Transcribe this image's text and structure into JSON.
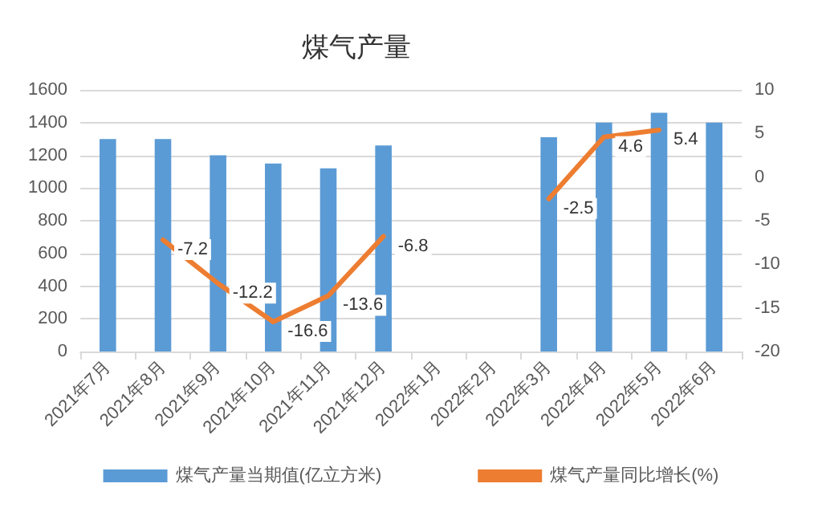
{
  "chart_data": {
    "type": "bar",
    "title": "煤气产量",
    "categories": [
      "2021年7月",
      "2021年8月",
      "2021年9月",
      "2021年10月",
      "2021年11月",
      "2021年12月",
      "2022年1月",
      "2022年2月",
      "2022年3月",
      "2022年4月",
      "2022年5月",
      "2022年6月"
    ],
    "series": [
      {
        "name": "煤气产量当期值(亿立方米)",
        "color": "#5b9bd5",
        "values": [
          1300,
          1300,
          1200,
          1150,
          1120,
          1260,
          null,
          null,
          1310,
          1400,
          1460,
          1400
        ]
      },
      {
        "name": "煤气产量同比增长(%)",
        "type": "line",
        "axis": "y2",
        "color": "#ed7d31",
        "values": [
          null,
          -7.2,
          -12.2,
          -16.6,
          -13.6,
          -6.8,
          null,
          null,
          -2.5,
          4.6,
          5.4,
          null
        ],
        "value_labels": [
          null,
          "-7.2",
          "-12.2",
          "-16.6",
          "-13.6",
          "-6.8",
          null,
          null,
          "-2.5",
          "4.6",
          "5.4",
          null
        ]
      }
    ],
    "ylim": [
      0,
      1600
    ],
    "yticks": [
      0,
      200,
      400,
      600,
      800,
      1000,
      1200,
      1400,
      1600
    ],
    "y2lim": [
      -20,
      10
    ],
    "y2ticks": [
      -20,
      -15,
      -10,
      -5,
      0,
      5,
      10
    ],
    "grid": "y",
    "legend": "bottom",
    "marker": "none",
    "line_style": "solid"
  }
}
